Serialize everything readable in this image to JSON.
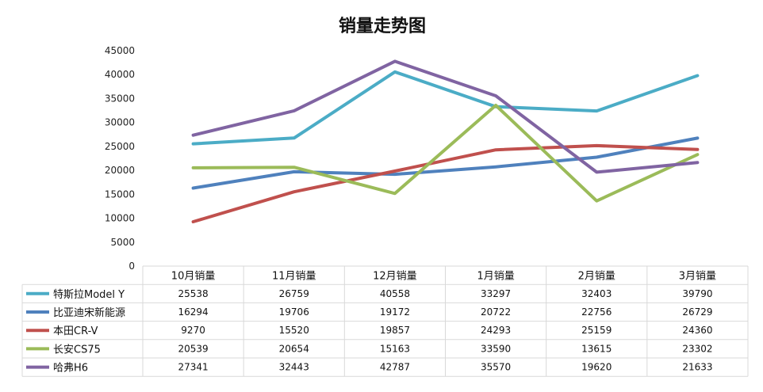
{
  "chart_data": {
    "type": "line",
    "title": "销量走势图",
    "xlabel": "",
    "ylabel": "",
    "ylim": [
      0,
      45000
    ],
    "yticks": [
      0,
      5000,
      10000,
      15000,
      20000,
      25000,
      30000,
      35000,
      40000,
      45000
    ],
    "grid": false,
    "legend": "data-table",
    "categories": [
      "10月销量",
      "11月销量",
      "12月销量",
      "1月销量",
      "2月销量",
      "3月销量"
    ],
    "series": [
      {
        "name": "特斯拉Model Y",
        "color": "#4BACC6",
        "values": [
          25538,
          26759,
          40558,
          33297,
          32403,
          39790
        ]
      },
      {
        "name": "比亚迪宋新能源",
        "color": "#4F81BD",
        "values": [
          16294,
          19706,
          19172,
          20722,
          22756,
          26729
        ]
      },
      {
        "name": "本田CR-V",
        "color": "#C0504D",
        "values": [
          9270,
          15520,
          19857,
          24293,
          25159,
          24360
        ]
      },
      {
        "name": "长安CS75",
        "color": "#9BBB59",
        "values": [
          20539,
          20654,
          15163,
          33590,
          13615,
          23302
        ]
      },
      {
        "name": "哈弗H6",
        "color": "#8064A2",
        "values": [
          27341,
          32443,
          42787,
          35570,
          19620,
          21633
        ]
      }
    ]
  }
}
